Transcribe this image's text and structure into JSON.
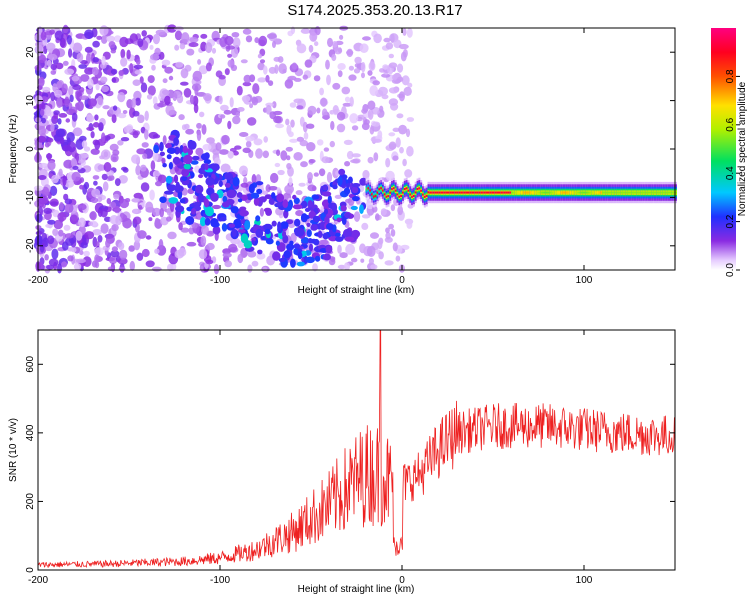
{
  "figure": {
    "title": "S174.2025.353.20.13.R17"
  },
  "colors": {
    "snr_line": "#ee2020",
    "axis": "#000000"
  },
  "chart_data": [
    {
      "type": "heatmap",
      "title": "S174.2025.353.20.13.R17",
      "xlabel": "Height of straight line (km)",
      "ylabel": "Frequency (Hz)",
      "xlim": [
        -200,
        150
      ],
      "ylim": [
        -25,
        25
      ],
      "x_ticks": [
        -200,
        -100,
        0,
        100
      ],
      "y_ticks": [
        -20,
        -10,
        0,
        10,
        20
      ],
      "colorbar": {
        "label": "Normalized spectral amplitude",
        "range": [
          0.0,
          1.0
        ],
        "ticks": [
          0.0,
          0.2,
          0.4,
          0.6,
          0.8
        ],
        "colormap": "rainbow (white-purple-blue-cyan-green-yellow-red-magenta)"
      },
      "features": {
        "noise_region_x": [
          -200,
          -20
        ],
        "dispersive_streak": {
          "x": [
            -130,
            -25
          ],
          "freq": [
            -3,
            -17
          ]
        },
        "steady_band": {
          "x": [
            -20,
            150
          ],
          "freq": -9,
          "peak_amplitude": 0.95
        }
      }
    },
    {
      "type": "line",
      "xlabel": "Height of straight line (km)",
      "ylabel": "SNR (10 * v/v)",
      "xlim": [
        -200,
        150
      ],
      "ylim": [
        0,
        700
      ],
      "x_ticks": [
        -200,
        -100,
        0,
        100
      ],
      "y_ticks": [
        0,
        200,
        400,
        600
      ],
      "envelope": [
        [
          -200,
          15
        ],
        [
          -160,
          18
        ],
        [
          -120,
          25
        ],
        [
          -100,
          35
        ],
        [
          -80,
          60
        ],
        [
          -60,
          110
        ],
        [
          -40,
          190
        ],
        [
          -30,
          240
        ],
        [
          -20,
          280
        ],
        [
          -10,
          280
        ],
        [
          -5,
          240
        ],
        [
          0,
          250
        ],
        [
          10,
          280
        ],
        [
          20,
          350
        ],
        [
          30,
          400
        ],
        [
          50,
          420
        ],
        [
          80,
          420
        ],
        [
          100,
          410
        ],
        [
          120,
          400
        ],
        [
          150,
          390
        ]
      ],
      "spike": {
        "x": -12,
        "y": 700
      }
    }
  ]
}
